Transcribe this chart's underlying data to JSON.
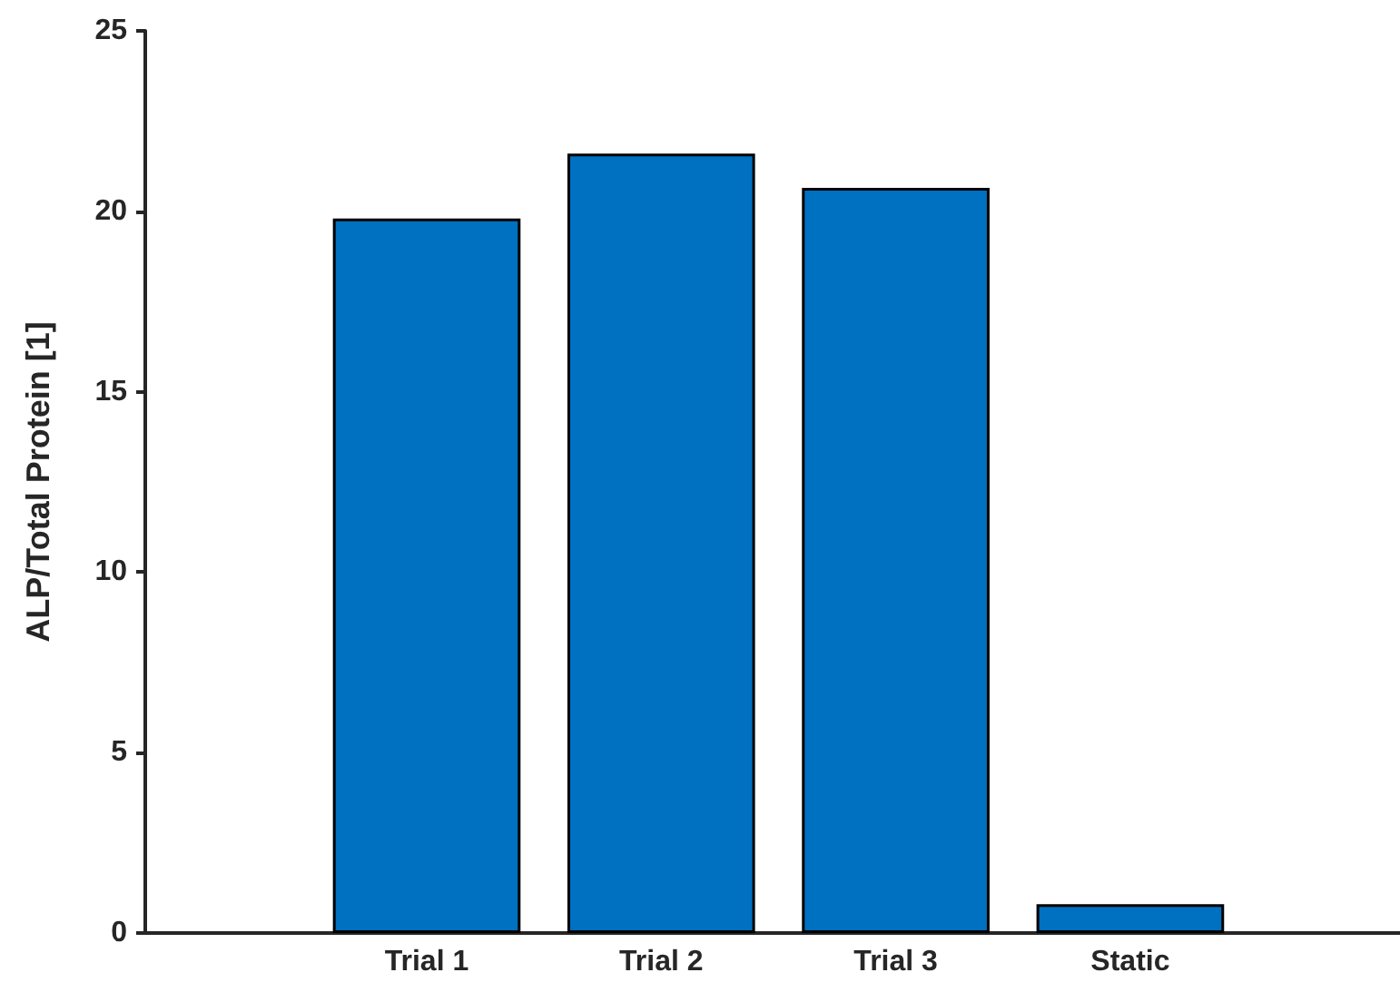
{
  "chart_data": {
    "type": "bar",
    "ylabel": "ALP/Total Protein [1]",
    "categories": [
      "Trial 1",
      "Trial 2",
      "Trial 3",
      "Static"
    ],
    "values": [
      19.8,
      21.6,
      20.65,
      0.8
    ],
    "color": "#0070c0",
    "ylim": [
      0,
      25
    ],
    "yticks": [
      0,
      5,
      10,
      15,
      20,
      25
    ],
    "grid": false
  }
}
